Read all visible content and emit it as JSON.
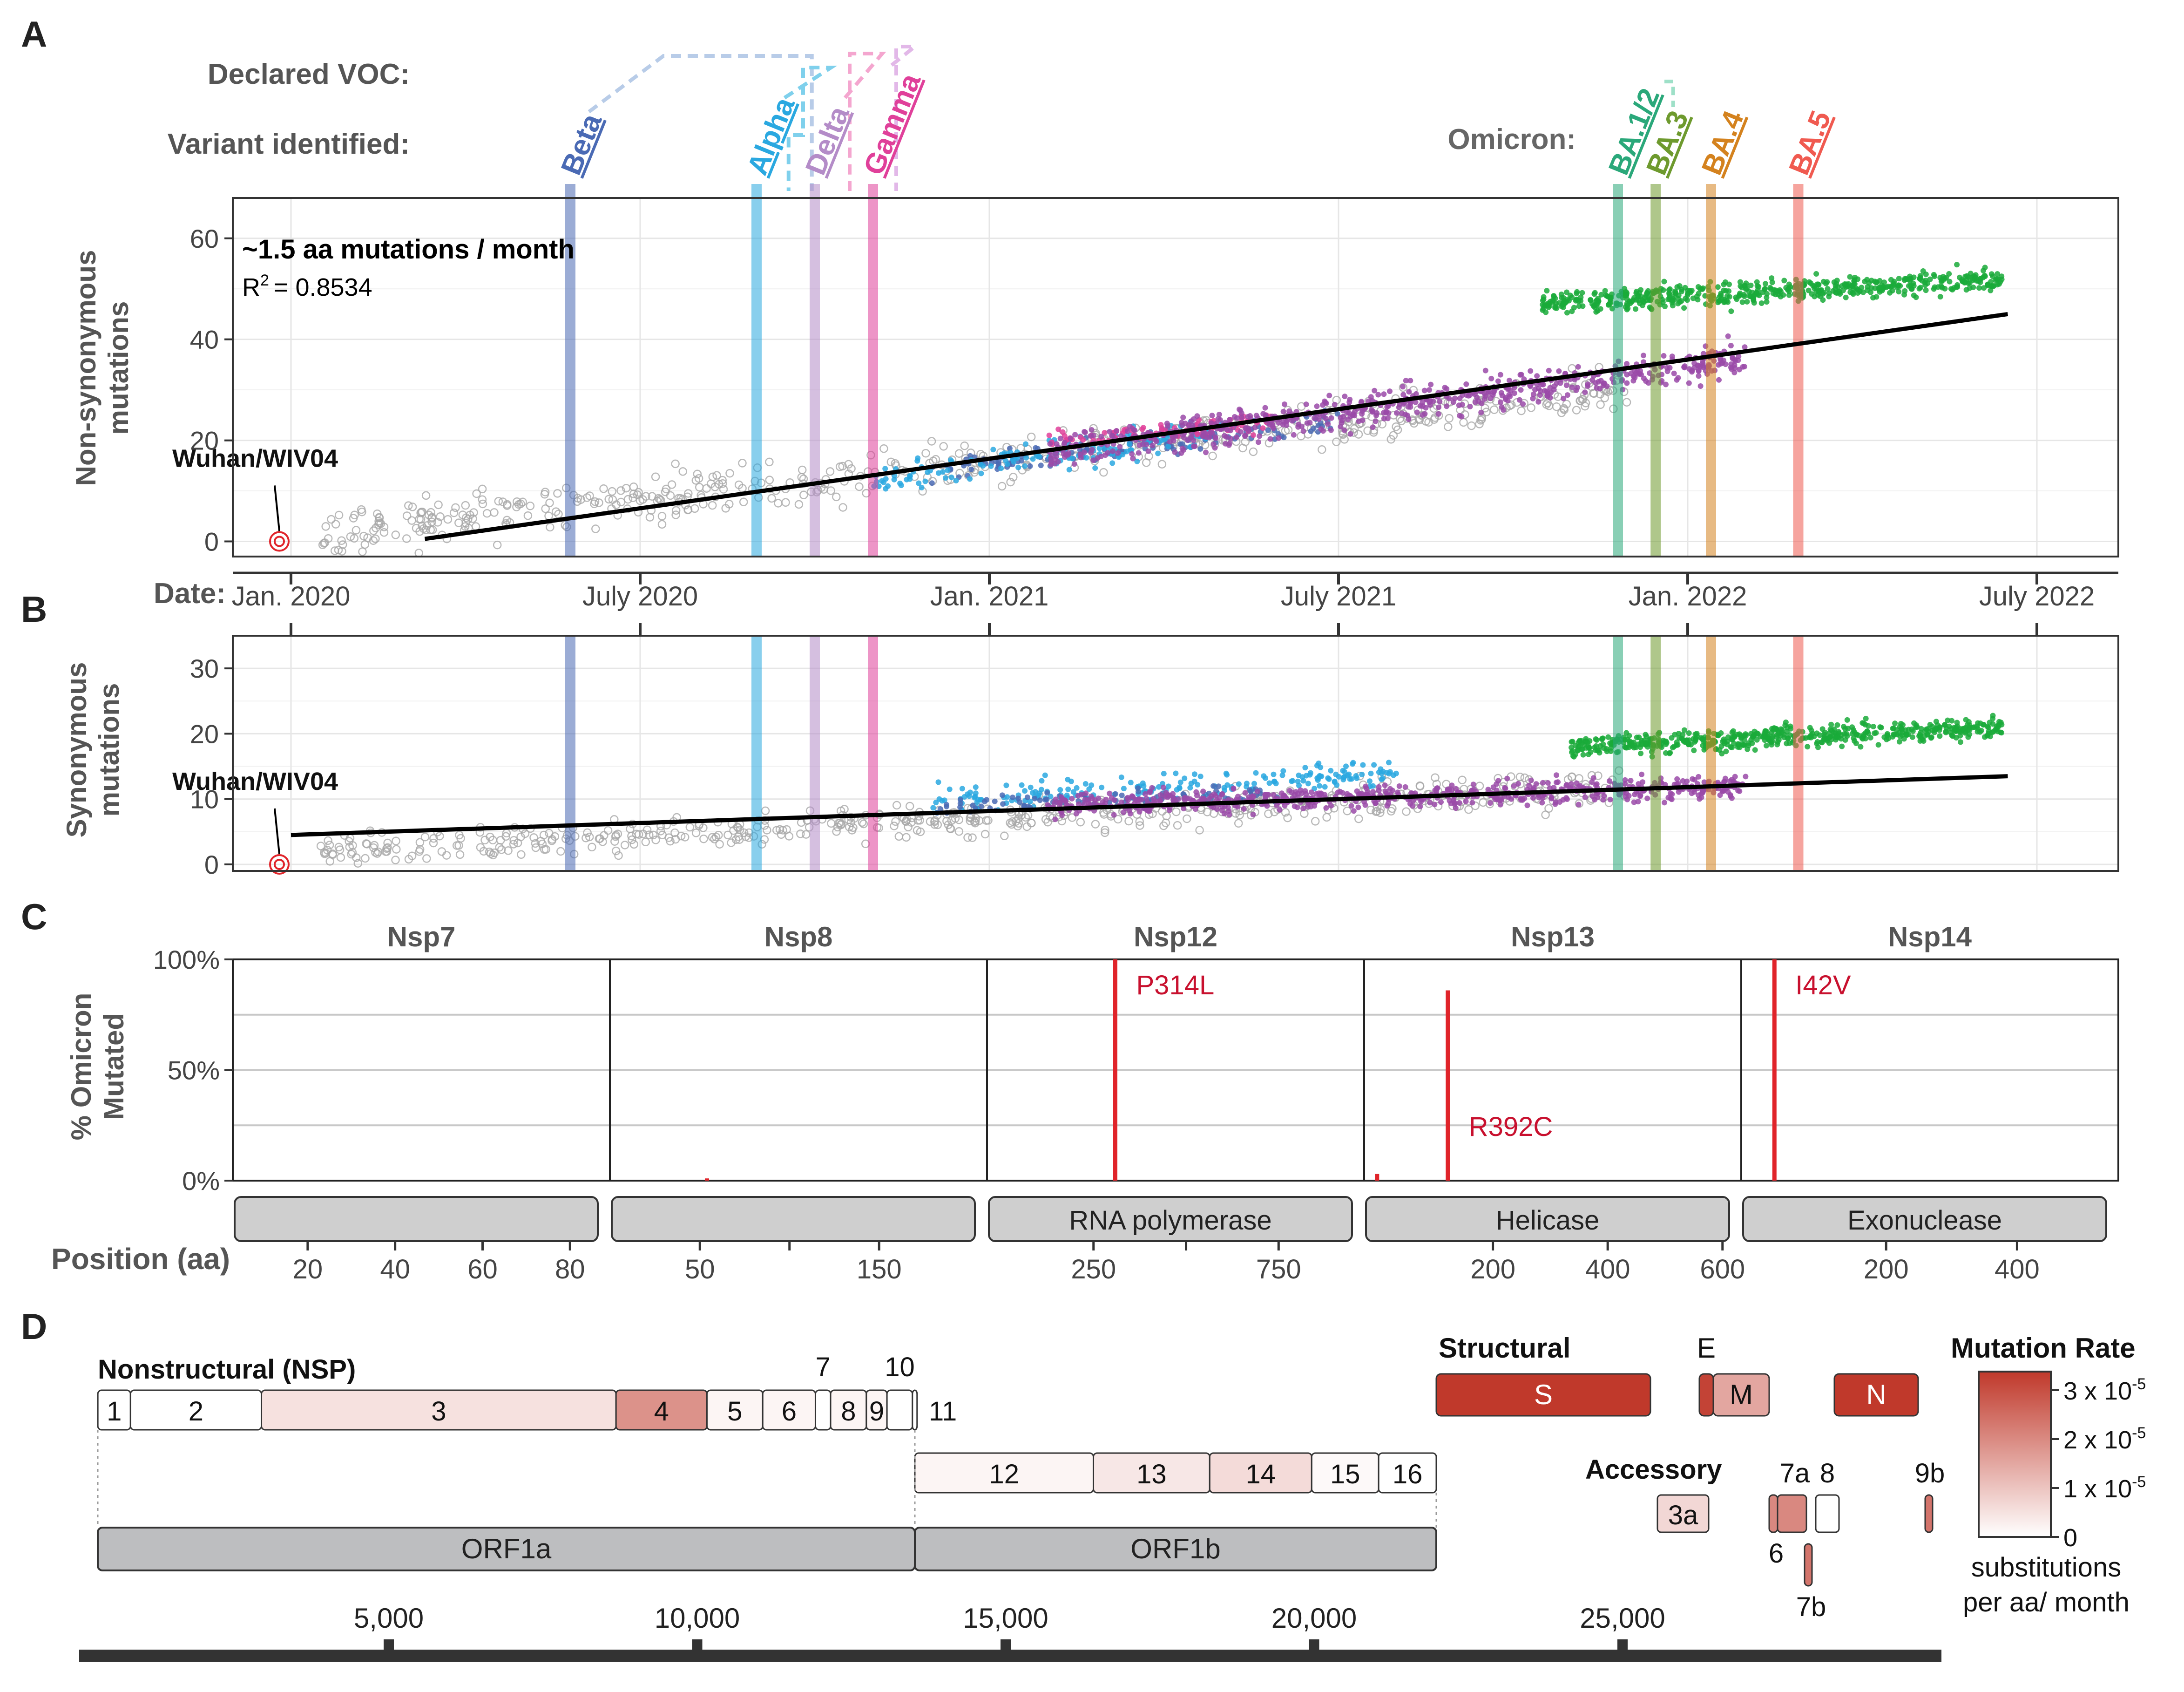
{
  "panel_labels": [
    "A",
    "B",
    "C",
    "D"
  ],
  "colors": {
    "beta": "#4a6ab4",
    "alpha": "#2aa8e0",
    "delta": "#b48cc8",
    "gamma": "#e0409a",
    "ba12": "#2aa87a",
    "ba3": "#6e9a2e",
    "ba4": "#d4821e",
    "ba5": "#f05a50",
    "grey": "#a8a8a8",
    "purple": "#9a4aa8",
    "green": "#1aaa3a",
    "red": "#e0242a",
    "rate_low": "#ffffff",
    "rate_high": "#c0392b"
  },
  "chart_data": [
    {
      "type": "scatter",
      "panel": "A",
      "ylabel": "Non-synonymous mutations",
      "ylim": [
        -3,
        68
      ],
      "yticks": [
        0,
        20,
        40,
        60
      ],
      "date_label": "Date:",
      "xticks": [
        {
          "label": "Jan. 2020",
          "month": 0
        },
        {
          "label": "July 2020",
          "month": 6
        },
        {
          "label": "Jan. 2021",
          "month": 12
        },
        {
          "label": "July 2021",
          "month": 18
        },
        {
          "label": "Jan. 2022",
          "month": 24
        },
        {
          "label": "July 2022",
          "month": 30
        }
      ],
      "xlim_months": [
        -1.0,
        31.4
      ],
      "annotation_bold": "~1.5 aa mutations / month",
      "r2_label": "R",
      "r2_exp": "2",
      "r2_value": "= 0.8534",
      "reference_label": "Wuhan/WIV04",
      "reference_point": {
        "month": -0.2,
        "value": 0
      },
      "regression": {
        "from_month": 2.3,
        "to_month": 29.5,
        "from_value": 0.5,
        "to_value": 45
      },
      "declared_voc_label": "Declared VOC:",
      "variant_identified_label": "Variant identified:",
      "omicron_label": "Omicron:",
      "clouds": [
        {
          "name": "ancestral",
          "color_key": "grey",
          "start": 0.5,
          "end": 23,
          "y0": 1,
          "y1": 30,
          "spread": 4.5,
          "n": 560,
          "open": true
        },
        {
          "name": "beta",
          "color_key": "beta",
          "start": 11,
          "end": 18,
          "y0": 14,
          "y1": 24,
          "spread": 2.5,
          "n": 140
        },
        {
          "name": "alpha",
          "color_key": "alpha",
          "start": 10,
          "end": 16,
          "y0": 12,
          "y1": 22,
          "spread": 3,
          "n": 140
        },
        {
          "name": "gamma",
          "color_key": "gamma",
          "start": 13,
          "end": 17,
          "y0": 20,
          "y1": 24,
          "spread": 2,
          "n": 90
        },
        {
          "name": "delta",
          "color_key": "purple",
          "start": 13,
          "end": 25,
          "y0": 18,
          "y1": 36,
          "spread": 3.5,
          "n": 640
        },
        {
          "name": "omicron",
          "color_key": "green",
          "start": 21.5,
          "end": 29.4,
          "y0": 47,
          "y1": 52,
          "spread": 2.2,
          "n": 560
        }
      ]
    },
    {
      "type": "scatter",
      "panel": "B",
      "ylabel": "Synonymous mutations",
      "ylim": [
        -1,
        35
      ],
      "yticks": [
        0,
        10,
        20,
        30
      ],
      "xlim_months": [
        -1.0,
        31.4
      ],
      "reference_label": "Wuhan/WIV04",
      "reference_point": {
        "month": -0.2,
        "value": 0
      },
      "regression": {
        "from_month": 0,
        "to_month": 29.5,
        "from_value": 4.5,
        "to_value": 13.5
      },
      "clouds": [
        {
          "name": "ancestral",
          "color_key": "grey",
          "start": 0.5,
          "end": 23,
          "y0": 2,
          "y1": 12,
          "spread": 2.5,
          "n": 560,
          "open": true
        },
        {
          "name": "alpha",
          "color_key": "alpha",
          "start": 11,
          "end": 19,
          "y0": 10,
          "y1": 14,
          "spread": 2,
          "n": 200
        },
        {
          "name": "beta",
          "color_key": "beta",
          "start": 11,
          "end": 17,
          "y0": 9,
          "y1": 11,
          "spread": 1.5,
          "n": 90
        },
        {
          "name": "delta",
          "color_key": "purple",
          "start": 13,
          "end": 25,
          "y0": 9,
          "y1": 12,
          "spread": 1.8,
          "n": 640
        },
        {
          "name": "omicron",
          "color_key": "green",
          "start": 22,
          "end": 29.4,
          "y0": 18,
          "y1": 21,
          "spread": 1.6,
          "n": 560
        }
      ]
    },
    {
      "type": "bar",
      "panel": "C",
      "ylabel": "% Omicron Mutated",
      "ylim": [
        0,
        100
      ],
      "yticks": [
        "0%",
        "50%",
        "100%"
      ],
      "xlabel": "Position (aa)",
      "facets": [
        {
          "name": "Nsp7",
          "domain": "",
          "len": 83,
          "ticks": [
            20,
            40,
            60,
            80
          ],
          "mutations": []
        },
        {
          "name": "Nsp8",
          "domain": "",
          "len": 198,
          "ticks": [
            50,
            150
          ],
          "minor": [
            100
          ],
          "mutations": [
            {
              "pos": 50,
              "pct": 1,
              "label": ""
            }
          ]
        },
        {
          "name": "Nsp12",
          "domain": "RNA polymerase",
          "len": 932,
          "ticks": [
            250,
            750
          ],
          "minor": [
            500
          ],
          "mutations": [
            {
              "pos": 314,
              "pct": 100,
              "label": "P314L"
            }
          ]
        },
        {
          "name": "Nsp13",
          "domain": "Helicase",
          "len": 601,
          "ticks": [
            200,
            400,
            600
          ],
          "mutations": [
            {
              "pos": 15,
              "pct": 3,
              "label": ""
            },
            {
              "pos": 130,
              "pct": 86,
              "label": ""
            }
          ],
          "extra_label": "R392C"
        },
        {
          "name": "Nsp14",
          "domain": "Exonuclease",
          "len": 527,
          "ticks": [
            200,
            400
          ],
          "mutations": [
            {
              "pos": 42,
              "pct": 100,
              "label": "I42V"
            }
          ]
        }
      ]
    },
    {
      "type": "heatmap",
      "panel": "D",
      "nonstructural_label": "Nonstructural (NSP)",
      "structural_label": "Structural",
      "accessory_label": "Accessory",
      "nsp_1a": [
        {
          "label": "1",
          "start": 1,
          "end": 540,
          "rate": 0.0
        },
        {
          "label": "2",
          "start": 540,
          "end": 2700,
          "rate": 0.0
        },
        {
          "label": "3",
          "start": 2700,
          "end": 8550,
          "rate": 0.15
        },
        {
          "label": "4",
          "start": 8550,
          "end": 10050,
          "rate": 0.55
        },
        {
          "label": "5",
          "start": 10050,
          "end": 10970,
          "rate": 0.05
        },
        {
          "label": "6",
          "start": 10970,
          "end": 11840,
          "rate": 0.05
        },
        {
          "label": "7",
          "start": 11840,
          "end": 12090,
          "rate": 0.0,
          "top": true
        },
        {
          "label": "8",
          "start": 12090,
          "end": 12680,
          "rate": 0.05
        },
        {
          "label": "9",
          "start": 12680,
          "end": 13020,
          "rate": 0.05
        },
        {
          "label": "10",
          "start": 13020,
          "end": 13440,
          "rate": 0.0,
          "top": true
        },
        {
          "label": "11",
          "start": 13440,
          "end": 13480,
          "rate": 0.0,
          "side": true
        }
      ],
      "nsp_1b": [
        {
          "label": "12",
          "start": 13468,
          "end": 16236,
          "rate": 0.05
        },
        {
          "label": "13",
          "start": 16236,
          "end": 18039,
          "rate": 0.12
        },
        {
          "label": "14",
          "start": 18039,
          "end": 19620,
          "rate": 0.18
        },
        {
          "label": "15",
          "start": 19620,
          "end": 20658,
          "rate": 0.03
        },
        {
          "label": "16",
          "start": 20658,
          "end": 21552,
          "rate": 0.0
        }
      ],
      "orfs": [
        {
          "label": "ORF1a",
          "start": 266,
          "end": 13468
        },
        {
          "label": "ORF1b",
          "start": 13468,
          "end": 21555
        }
      ],
      "structural": [
        {
          "label": "S",
          "rate": 1.0
        },
        {
          "label": "E",
          "rate": 0.95
        },
        {
          "label": "M",
          "rate": 0.45
        },
        {
          "label": "N",
          "rate": 1.0
        }
      ],
      "accessory": [
        {
          "label": "3a",
          "rate": 0.2
        },
        {
          "label": "6",
          "rate": 0.6
        },
        {
          "label": "7a",
          "rate": 0.6
        },
        {
          "label": "8",
          "rate": 0.0
        },
        {
          "label": "7b",
          "rate": 0.7
        },
        {
          "label": "9b",
          "rate": 0.7
        }
      ],
      "genome_ticks": [
        {
          "label": "5,000",
          "pos": 5000
        },
        {
          "label": "10,000",
          "pos": 10000
        },
        {
          "label": "15,000",
          "pos": 15000
        },
        {
          "label": "20,000",
          "pos": 20000
        },
        {
          "label": "25,000",
          "pos": 25000
        }
      ],
      "legend": {
        "title": "Mutation Rate",
        "ticks": [
          "0",
          "1 x 10",
          "2 x 10",
          "3 x 10"
        ],
        "exponent": "-5",
        "caption_line1": "substitutions",
        "caption_line2": "per aa/ month"
      }
    }
  ],
  "variants": [
    {
      "label": "Beta",
      "color_key": "beta",
      "month": 4.8
    },
    {
      "label": "Alpha",
      "color_key": "alpha",
      "month": 8.0
    },
    {
      "label": "Delta",
      "color_key": "delta",
      "month": 9.0
    },
    {
      "label": "Gamma",
      "color_key": "gamma",
      "month": 10.0
    },
    {
      "label": "BA.1/2",
      "color_key": "ba12",
      "month": 22.8
    },
    {
      "label": "BA.3",
      "color_key": "ba12",
      "month": 23.1
    },
    {
      "label": "BA.3",
      "color_key": "ba3",
      "month": 23.45
    },
    {
      "label": "BA.4",
      "color_key": "ba4",
      "month": 24.4
    },
    {
      "label": "BA.5",
      "color_key": "ba5",
      "month": 25.9
    }
  ]
}
